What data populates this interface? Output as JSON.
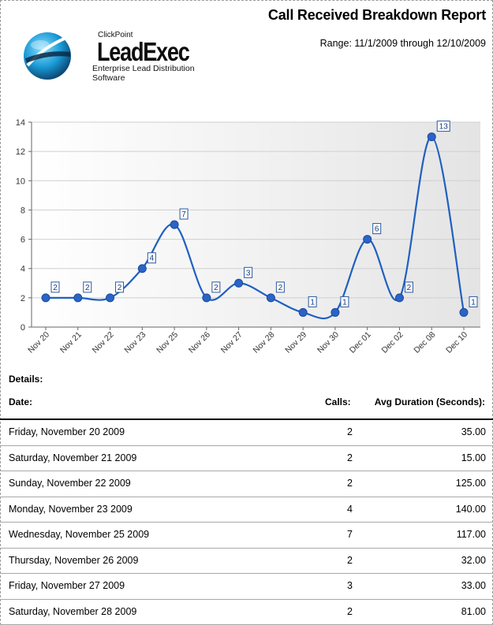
{
  "report": {
    "title": "Call Received Breakdown Report",
    "range": "Range: 11/1/2009 through 12/10/2009"
  },
  "logo": {
    "brand": "ClickPoint",
    "name": "LeadExec",
    "tagline": "Enterprise Lead Distribution Software"
  },
  "chart_data": {
    "type": "line",
    "title": "",
    "xlabel": "",
    "ylabel": "",
    "categories": [
      "Nov 20",
      "Nov 21",
      "Nov 22",
      "Nov 23",
      "Nov 25",
      "Nov 26",
      "Nov 27",
      "Nov 28",
      "Nov 29",
      "Nov 30",
      "Dec 01",
      "Dec 02",
      "Dec 08",
      "Dec 10"
    ],
    "values": [
      2,
      2,
      2,
      4,
      7,
      2,
      3,
      2,
      1,
      1,
      6,
      2,
      13,
      1
    ],
    "ylim": [
      0,
      14
    ],
    "yticks": [
      0,
      2,
      4,
      6,
      8,
      10,
      12,
      14
    ],
    "data_labels": true,
    "grid": true,
    "smooth": true,
    "legend": "none",
    "colors": {
      "line": "#2060c0",
      "marker": "#2a64c8",
      "plot_bg": "#f0f0f0"
    }
  },
  "details": {
    "label": "Details:",
    "columns": {
      "date": "Date:",
      "calls": "Calls:",
      "duration": "Avg Duration (Seconds):"
    },
    "rows": [
      {
        "date": "Friday, November 20 2009",
        "calls": "2",
        "duration": "35.00"
      },
      {
        "date": "Saturday, November 21 2009",
        "calls": "2",
        "duration": "15.00"
      },
      {
        "date": "Sunday, November 22 2009",
        "calls": "2",
        "duration": "125.00"
      },
      {
        "date": "Monday, November 23 2009",
        "calls": "4",
        "duration": "140.00"
      },
      {
        "date": "Wednesday, November 25 2009",
        "calls": "7",
        "duration": "117.00"
      },
      {
        "date": "Thursday, November 26 2009",
        "calls": "2",
        "duration": "32.00"
      },
      {
        "date": "Friday, November 27 2009",
        "calls": "3",
        "duration": "33.00"
      },
      {
        "date": "Saturday, November 28 2009",
        "calls": "2",
        "duration": "81.00"
      }
    ]
  }
}
